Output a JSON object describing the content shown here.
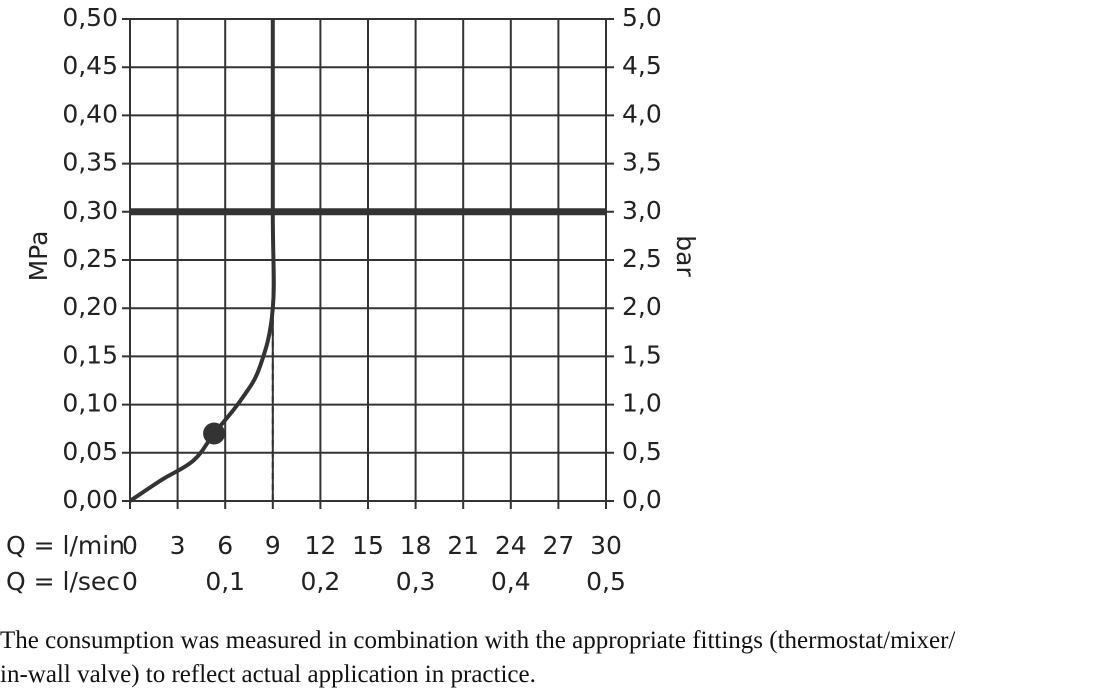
{
  "chart_data": {
    "type": "line",
    "xlabel": "Q = l/min",
    "x2label": "Q = l/sec",
    "ylabel_left": "MPa",
    "ylabel_right": "bar",
    "xlim": [
      0,
      30
    ],
    "ylim": [
      0,
      0.5
    ],
    "x_ticks": [
      "0",
      "3",
      "6",
      "9",
      "12",
      "15",
      "18",
      "21",
      "24",
      "27",
      "30"
    ],
    "x2_ticks": [
      {
        "x": 0,
        "label": "0"
      },
      {
        "x": 6,
        "label": "0,1"
      },
      {
        "x": 12,
        "label": "0,2"
      },
      {
        "x": 18,
        "label": "0,3"
      },
      {
        "x": 24,
        "label": "0,4"
      },
      {
        "x": 30,
        "label": "0,5"
      }
    ],
    "y_ticks_left": [
      "0,00",
      "0,05",
      "0,10",
      "0,15",
      "0,20",
      "0,25",
      "0,30",
      "0,35",
      "0,40",
      "0,45",
      "0,50"
    ],
    "y_ticks_right": [
      "0,0",
      "0,5",
      "1,0",
      "1,5",
      "2,0",
      "2,5",
      "3,0",
      "3,5",
      "4,0",
      "4,5",
      "5,0"
    ],
    "grid": true,
    "series": [
      {
        "values_xy": [
          [
            0,
            0
          ],
          [
            2,
            0.022
          ],
          [
            4,
            0.042
          ],
          [
            5.3,
            0.07
          ],
          [
            7,
            0.105
          ],
          [
            8.2,
            0.14
          ],
          [
            9,
            0.2
          ],
          [
            9,
            0.3
          ],
          [
            9,
            0.5
          ]
        ]
      }
    ],
    "marker_point": [
      5.3,
      0.07
    ],
    "reference_line_y": 0.3,
    "dashed_drop_x": 9,
    "dashed_drop_range": [
      0,
      0.2
    ],
    "colors": {
      "line": "#333333",
      "grid": "#333333",
      "text": "#222222"
    }
  },
  "caption": {
    "line1": "The consumption was measured in combination with the appropriate fittings (thermostat/mixer/",
    "line2": "in-wall valve) to reflect actual application in practice."
  }
}
